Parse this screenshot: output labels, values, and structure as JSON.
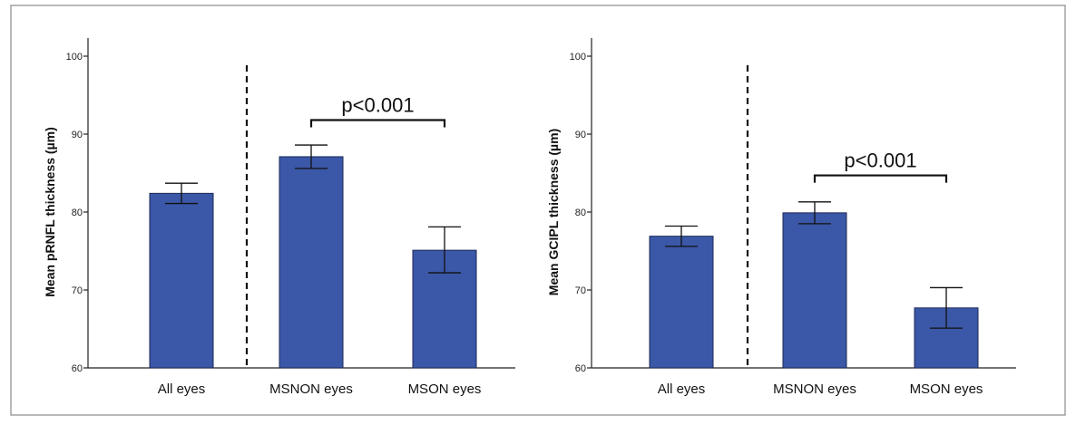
{
  "chart_data": [
    {
      "type": "bar",
      "title": "",
      "xlabel": "",
      "ylabel": "Mean pRNFL thickness (µm)",
      "ylim": [
        60,
        100
      ],
      "yticks": [
        60,
        70,
        80,
        90,
        100
      ],
      "categories": [
        "All eyes",
        "MSNON eyes",
        "MSON eyes"
      ],
      "values": [
        82.4,
        87.1,
        75.1
      ],
      "error_low": [
        81.1,
        85.6,
        72.2
      ],
      "error_high": [
        83.7,
        88.6,
        78.1
      ],
      "bar_color": "#3b57a7",
      "divider": "dashed line between All eyes and MSNON eyes",
      "significance": {
        "from": "MSNON eyes",
        "to": "MSON eyes",
        "label": "p<0.001",
        "level": 91.8
      }
    },
    {
      "type": "bar",
      "title": "",
      "xlabel": "",
      "ylabel": "Mean GCIPL thickness (µm)",
      "ylim": [
        60,
        100
      ],
      "yticks": [
        60,
        70,
        80,
        90,
        100
      ],
      "categories": [
        "All eyes",
        "MSNON eyes",
        "MSON eyes"
      ],
      "values": [
        76.9,
        79.9,
        67.7
      ],
      "error_low": [
        75.6,
        78.5,
        65.1
      ],
      "error_high": [
        78.2,
        81.3,
        70.3
      ],
      "bar_color": "#3b57a7",
      "divider": "dashed line between All eyes and MSNON eyes",
      "significance": {
        "from": "MSNON eyes",
        "to": "MSON eyes",
        "label": "p<0.001",
        "level": 84.7
      }
    }
  ]
}
